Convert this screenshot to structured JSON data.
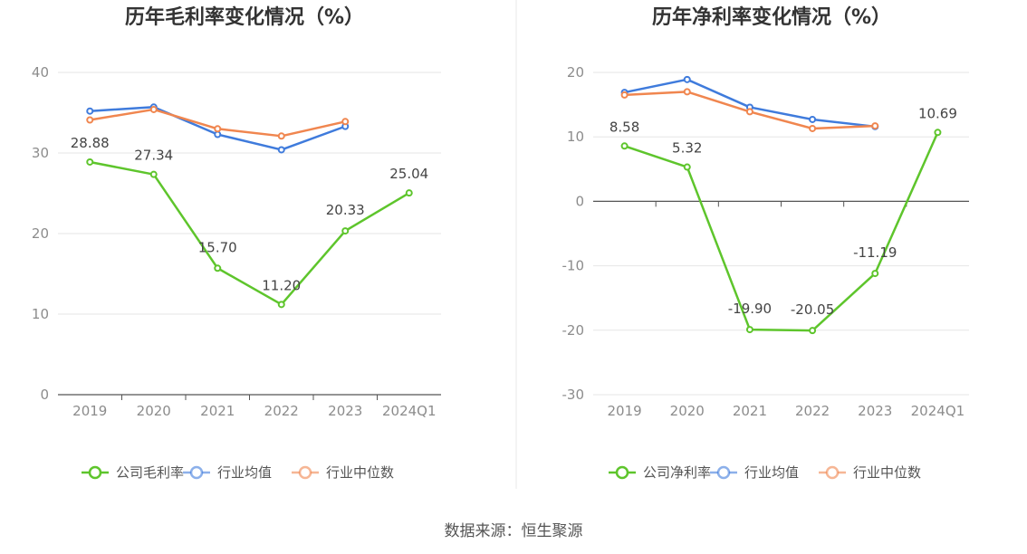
{
  "source": "数据来源：恒生聚源",
  "colors": {
    "company": "#5ec52c",
    "avg": "#3f7bdc",
    "median": "#f0864f",
    "grid": "#e6e6e6",
    "axis": "#555555",
    "divider": "#e8e8e8"
  },
  "chart_data": [
    {
      "type": "line",
      "title": "历年毛利率变化情况（%）",
      "categories": [
        "2019",
        "2020",
        "2021",
        "2022",
        "2023",
        "2024Q1"
      ],
      "ylim": [
        0,
        40
      ],
      "yticks": [
        0,
        10,
        20,
        30,
        40
      ],
      "grid": true,
      "legend_position": "bottom",
      "series": [
        {
          "name": "公司毛利率",
          "key": "company",
          "values": [
            28.88,
            27.34,
            15.7,
            11.2,
            20.33,
            25.04
          ],
          "labels": [
            "28.88",
            "27.34",
            "15.70",
            "11.20",
            "20.33",
            "25.04"
          ]
        },
        {
          "name": "行业均值",
          "key": "avg",
          "values": [
            35.2,
            35.7,
            32.3,
            30.4,
            33.3,
            null
          ]
        },
        {
          "name": "行业中位数",
          "key": "median",
          "values": [
            34.1,
            35.4,
            33.0,
            32.1,
            33.9,
            null
          ]
        }
      ]
    },
    {
      "type": "line",
      "title": "历年净利率变化情况（%）",
      "categories": [
        "2019",
        "2020",
        "2021",
        "2022",
        "2023",
        "2024Q1"
      ],
      "ylim": [
        -30,
        20
      ],
      "yticks": [
        -30,
        -20,
        -10,
        0,
        10,
        20
      ],
      "grid": true,
      "legend_position": "bottom",
      "series": [
        {
          "name": "公司净利率",
          "key": "company",
          "values": [
            8.58,
            5.32,
            -19.9,
            -20.05,
            -11.19,
            10.69
          ],
          "labels": [
            "8.58",
            "5.32",
            "-19.90",
            "-20.05",
            "-11.19",
            "10.69"
          ]
        },
        {
          "name": "行业均值",
          "key": "avg",
          "values": [
            16.9,
            18.9,
            14.6,
            12.7,
            11.6,
            null
          ]
        },
        {
          "name": "行业中位数",
          "key": "median",
          "values": [
            16.5,
            17.0,
            13.9,
            11.3,
            11.7,
            null
          ]
        }
      ]
    }
  ]
}
